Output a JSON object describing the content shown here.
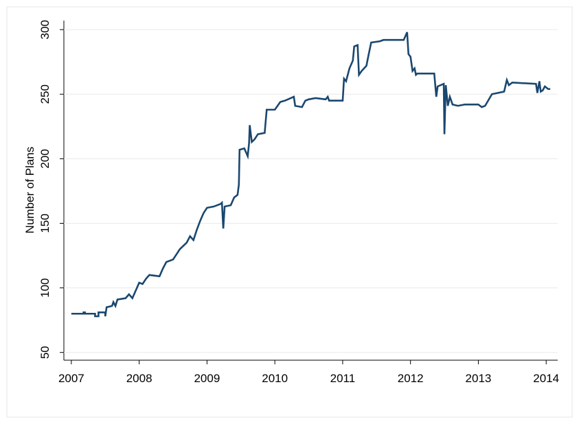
{
  "chart_data": {
    "type": "line",
    "y_label": "Number of Plans",
    "xlim": [
      2006.89,
      2014.17
    ],
    "xticks": [
      2007,
      2008,
      2009,
      2010,
      2011,
      2012,
      2013,
      2014
    ],
    "ylim": [
      44,
      307
    ],
    "yticks": [
      50,
      100,
      150,
      200,
      250,
      300
    ],
    "grid": true,
    "series": [
      {
        "color": "#1a476f",
        "x": [
          2007.0,
          2007.18,
          2007.18,
          2007.2,
          2007.2,
          2007.35,
          2007.35,
          2007.4,
          2007.4,
          2007.5,
          2007.5,
          2007.52,
          2007.6,
          2007.62,
          2007.65,
          2007.68,
          2007.8,
          2007.85,
          2007.9,
          2007.95,
          2008.0,
          2008.05,
          2008.1,
          2008.15,
          2008.3,
          2008.35,
          2008.4,
          2008.5,
          2008.55,
          2008.6,
          2008.7,
          2008.75,
          2008.8,
          2008.85,
          2008.9,
          2008.95,
          2009.0,
          2009.1,
          2009.2,
          2009.22,
          2009.24,
          2009.26,
          2009.35,
          2009.4,
          2009.45,
          2009.47,
          2009.48,
          2009.55,
          2009.6,
          2009.62,
          2009.63,
          2009.66,
          2009.7,
          2009.75,
          2009.85,
          2009.88,
          2010.0,
          2010.08,
          2010.15,
          2010.28,
          2010.3,
          2010.4,
          2010.45,
          2010.5,
          2010.6,
          2010.75,
          2010.78,
          2010.8,
          2011.0,
          2011.02,
          2011.05,
          2011.1,
          2011.15,
          2011.17,
          2011.22,
          2011.24,
          2011.28,
          2011.35,
          2011.38,
          2011.42,
          2011.55,
          2011.6,
          2011.9,
          2011.95,
          2011.97,
          2012.0,
          2012.03,
          2012.06,
          2012.08,
          2012.1,
          2012.35,
          2012.38,
          2012.4,
          2012.49,
          2012.5,
          2012.52,
          2012.55,
          2012.58,
          2012.62,
          2012.7,
          2012.8,
          2013.0,
          2013.05,
          2013.1,
          2013.2,
          2013.38,
          2013.42,
          2013.45,
          2013.5,
          2013.85,
          2013.87,
          2013.9,
          2013.92,
          2013.95,
          2013.98,
          2014.03,
          2014.06
        ],
        "values": [
          80,
          80,
          81,
          81,
          80,
          80,
          78,
          78,
          81,
          81,
          78,
          85,
          86,
          89,
          86,
          91,
          92,
          95,
          92,
          98,
          104,
          103,
          107,
          110,
          109,
          115,
          120,
          122,
          126,
          130,
          135,
          140,
          137,
          145,
          152,
          158,
          162,
          163,
          165,
          166,
          146,
          163,
          164,
          170,
          172,
          180,
          207,
          208,
          202,
          212,
          226,
          213,
          215,
          219,
          220,
          238,
          238,
          244,
          245,
          248,
          241,
          240,
          245,
          246,
          247,
          246,
          248,
          245,
          245,
          262,
          260,
          270,
          276,
          287,
          288,
          265,
          268,
          272,
          280,
          290,
          291,
          292,
          292,
          298,
          281,
          279,
          268,
          270,
          265,
          266,
          266,
          248,
          256,
          258,
          219,
          257,
          241,
          248,
          242,
          241,
          242,
          242,
          240,
          241,
          250,
          252,
          261,
          257,
          259,
          258,
          251,
          260,
          252,
          253,
          256,
          254,
          254
        ]
      }
    ]
  }
}
